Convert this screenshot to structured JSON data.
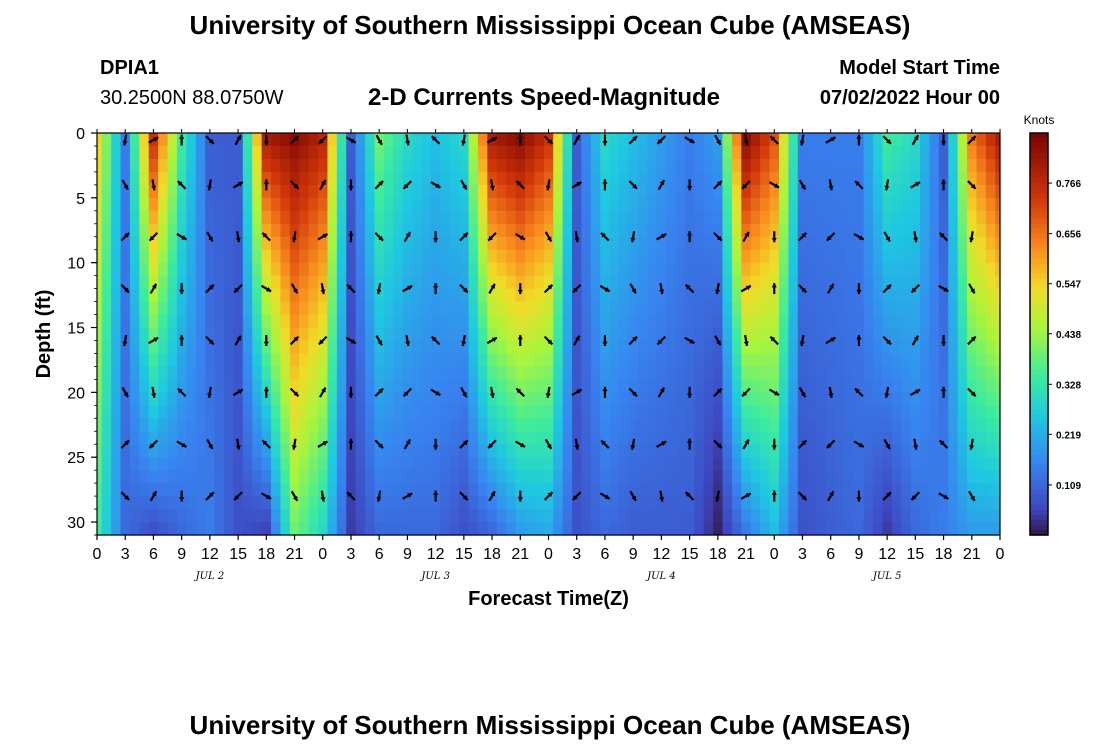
{
  "page": {
    "title": "University of Southern Mississippi Ocean Cube (AMSEAS)",
    "footer_title": "University of Southern Mississippi Ocean Cube (AMSEAS)",
    "station_id": "DPIA1",
    "station_coords": "30.2500N  88.0750W",
    "subtitle": "2-D Currents Speed-Magnitude",
    "model_start_label": "Model Start Time",
    "model_start_value": "07/02/2022 Hour 00"
  },
  "chart_data": {
    "type": "heatmap",
    "title": "2-D Currents Speed-Magnitude",
    "xlabel": "Forecast Time(Z)",
    "ylabel": "Depth (ft)",
    "ylim": [
      0,
      31
    ],
    "y_ticks": [
      0,
      5,
      10,
      15,
      20,
      25,
      30
    ],
    "x_ticks": [
      "0",
      "3",
      "6",
      "9",
      "12",
      "15",
      "18",
      "21",
      "0",
      "3",
      "6",
      "9",
      "12",
      "15",
      "18",
      "21",
      "0",
      "3",
      "6",
      "9",
      "12",
      "15",
      "18",
      "21",
      "0",
      "3",
      "6",
      "9",
      "12",
      "15",
      "18",
      "21",
      "0"
    ],
    "x_date_labels": [
      {
        "label": "JUL 2",
        "tick_index": 4
      },
      {
        "label": "JUL 3",
        "tick_index": 12
      },
      {
        "label": "JUL 4",
        "tick_index": 20
      },
      {
        "label": "JUL 5",
        "tick_index": 28
      }
    ],
    "colorbar": {
      "label": "Knots",
      "ticks": [
        0.109,
        0.219,
        0.328,
        0.438,
        0.547,
        0.656,
        0.766
      ],
      "range": [
        0.0,
        0.875
      ]
    },
    "columns": [
      {
        "name": "h0",
        "surface": 0.55,
        "bottom": 0.35
      },
      {
        "name": "h3",
        "surface": 0.15,
        "bottom": 0.12
      },
      {
        "name": "h6",
        "surface": 0.75,
        "bottom": 0.08
      },
      {
        "name": "h9",
        "surface": 0.35,
        "bottom": 0.12
      },
      {
        "name": "h12",
        "surface": 0.1,
        "bottom": 0.15
      },
      {
        "name": "h15",
        "surface": 0.1,
        "bottom": 0.08
      },
      {
        "name": "h18",
        "surface": 0.8,
        "bottom": 0.06
      },
      {
        "name": "h21",
        "surface": 0.85,
        "bottom": 0.4
      },
      {
        "name": "h0b",
        "surface": 0.78,
        "bottom": 0.3
      },
      {
        "name": "h3b",
        "surface": 0.1,
        "bottom": 0.05
      },
      {
        "name": "h6b",
        "surface": 0.4,
        "bottom": 0.12
      },
      {
        "name": "h9b",
        "surface": 0.3,
        "bottom": 0.12
      },
      {
        "name": "h12b",
        "surface": 0.25,
        "bottom": 0.12
      },
      {
        "name": "h15b",
        "surface": 0.3,
        "bottom": 0.08
      },
      {
        "name": "h18b",
        "surface": 0.8,
        "bottom": 0.12
      },
      {
        "name": "h21b",
        "surface": 0.85,
        "bottom": 0.2
      },
      {
        "name": "h0c",
        "surface": 0.75,
        "bottom": 0.22
      },
      {
        "name": "h3c",
        "surface": 0.1,
        "bottom": 0.08
      },
      {
        "name": "h6c",
        "surface": 0.3,
        "bottom": 0.12
      },
      {
        "name": "h9c",
        "surface": 0.25,
        "bottom": 0.1
      },
      {
        "name": "h12c",
        "surface": 0.2,
        "bottom": 0.1
      },
      {
        "name": "h15c",
        "surface": 0.15,
        "bottom": 0.1
      },
      {
        "name": "h18c",
        "surface": 0.2,
        "bottom": 0.02
      },
      {
        "name": "h21c",
        "surface": 0.85,
        "bottom": 0.15
      },
      {
        "name": "h0d",
        "surface": 0.7,
        "bottom": 0.25
      },
      {
        "name": "h3d",
        "surface": 0.15,
        "bottom": 0.08
      },
      {
        "name": "h6d",
        "surface": 0.15,
        "bottom": 0.1
      },
      {
        "name": "h9d",
        "surface": 0.15,
        "bottom": 0.12
      },
      {
        "name": "h12d",
        "surface": 0.35,
        "bottom": 0.05
      },
      {
        "name": "h15d",
        "surface": 0.3,
        "bottom": 0.12
      },
      {
        "name": "h18d",
        "surface": 0.1,
        "bottom": 0.15
      },
      {
        "name": "h21d",
        "surface": 0.65,
        "bottom": 0.2
      },
      {
        "name": "h0e",
        "surface": 0.8,
        "bottom": 0.2
      }
    ],
    "vector_depths_ft": [
      0,
      4,
      8,
      12,
      16,
      20,
      24,
      28
    ]
  }
}
